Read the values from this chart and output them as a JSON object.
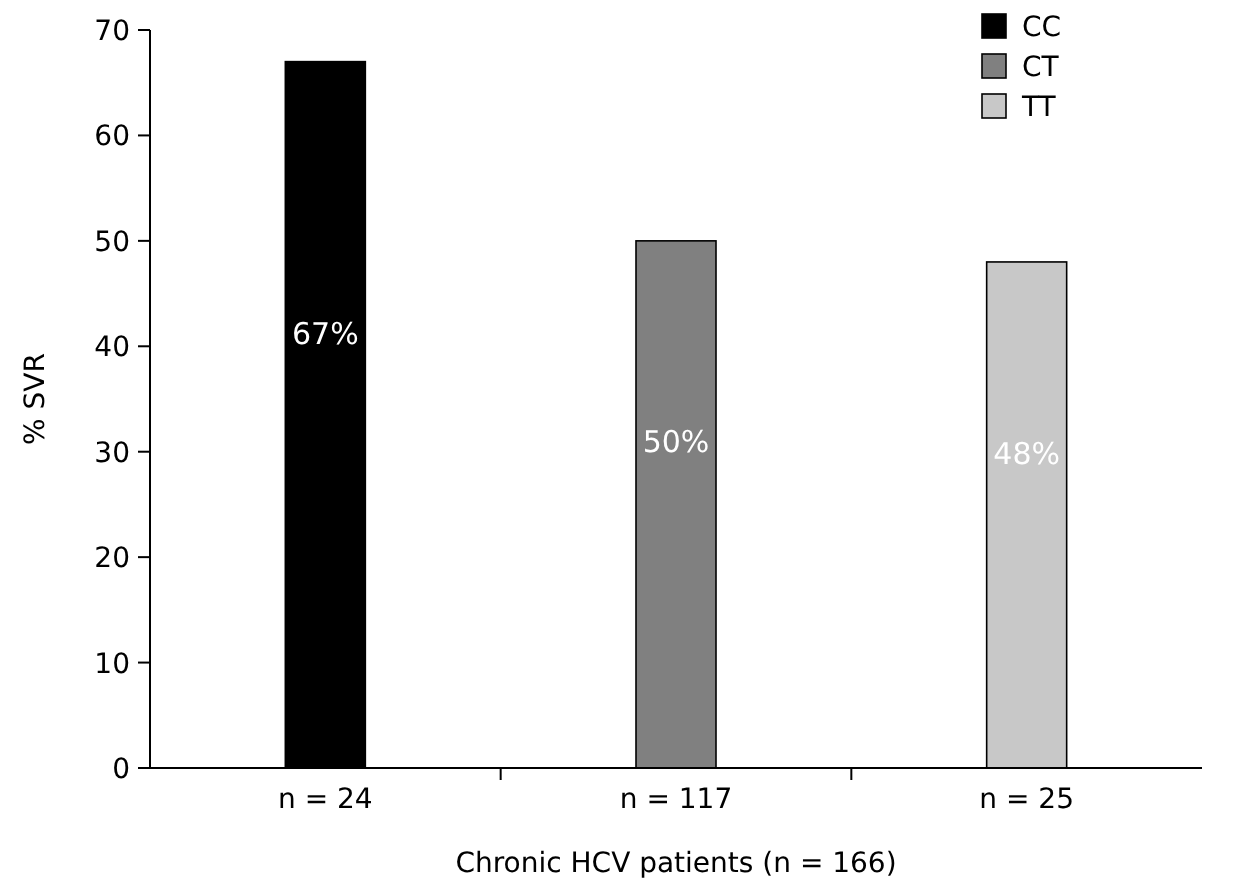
{
  "chart_data": {
    "type": "bar",
    "ylabel": "% SVR",
    "xlabel": "Chronic HCV patients (n = 166)",
    "categories": [
      "n = 24",
      "n = 117",
      "n = 25"
    ],
    "series": [
      {
        "name": "CC",
        "color": "#000000",
        "values": [
          67,
          null,
          null
        ],
        "value_labels": [
          "67%",
          null,
          null
        ]
      },
      {
        "name": "CT",
        "color": "#808080",
        "values": [
          null,
          50,
          null
        ],
        "value_labels": [
          null,
          "50%",
          null
        ]
      },
      {
        "name": "TT",
        "color": "#c8c8c8",
        "values": [
          null,
          null,
          48
        ],
        "value_labels": [
          null,
          null,
          "48%"
        ]
      }
    ],
    "ylim": [
      0,
      70
    ],
    "yticks": [
      0,
      10,
      20,
      30,
      40,
      50,
      60,
      70
    ],
    "grid": false,
    "legend": "top right"
  }
}
